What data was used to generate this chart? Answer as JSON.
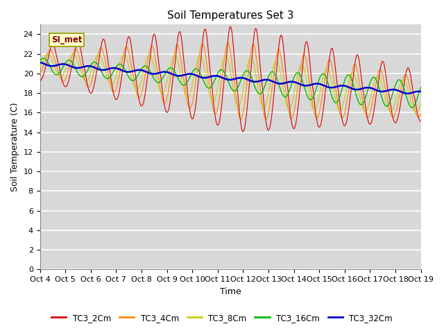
{
  "title": "Soil Temperatures Set 3",
  "xlabel": "Time",
  "ylabel": "Soil Temperature (C)",
  "ylim": [
    0,
    25
  ],
  "yticks": [
    0,
    2,
    4,
    6,
    8,
    10,
    12,
    14,
    16,
    18,
    20,
    22,
    24
  ],
  "xtick_labels": [
    "Oct 4",
    "Oct 5",
    "Oct 6",
    "Oct 7",
    "Oct 8",
    "Oct 9",
    "Oct 10",
    "Oct 11",
    "Oct 12",
    "Oct 13",
    "Oct 14",
    "Oct 15",
    "Oct 16",
    "Oct 17",
    "Oct 18",
    "Oct 19"
  ],
  "series_colors": [
    "#dd0000",
    "#ff8800",
    "#cccc00",
    "#00bb00",
    "#0000cc"
  ],
  "series_names": [
    "TC3_2Cm",
    "TC3_4Cm",
    "TC3_8Cm",
    "TC3_16Cm",
    "TC3_32Cm"
  ],
  "si_met_label": "SI_met",
  "fig_bg_color": "#ffffff",
  "plot_bg_color": "#d8d8d8",
  "grid_color": "#ffffff",
  "title_fontsize": 11,
  "tick_fontsize": 8,
  "label_fontsize": 9
}
